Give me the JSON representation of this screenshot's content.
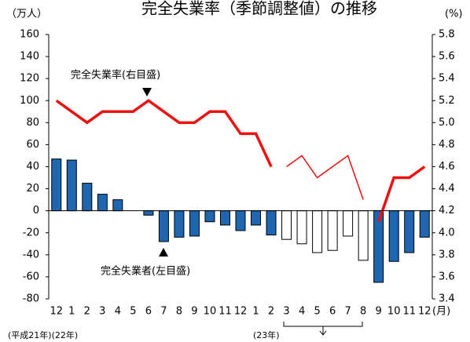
{
  "chart_data": {
    "type": "bar-line",
    "title": "完全失業率（季節調整値）の推移",
    "y_unit": "（万人）",
    "y2_unit": "(%)",
    "x_unit": "(月)",
    "year_labels": [
      "(平成21年)(22年)",
      "(23年)"
    ],
    "annotations": [
      "完全失業率(右目盛)",
      "完全失業者(左目盛)"
    ],
    "categories": [
      "12",
      "1",
      "2",
      "3",
      "4",
      "5",
      "6",
      "7",
      "8",
      "9",
      "10",
      "11",
      "12",
      "1",
      "2",
      "3",
      "4",
      "5",
      "6",
      "7",
      "8",
      "9",
      "10",
      "11",
      "12"
    ],
    "ylim": [
      -80,
      160
    ],
    "yticks": [
      -80,
      -60,
      -40,
      -20,
      0,
      20,
      40,
      60,
      80,
      100,
      120,
      140,
      160
    ],
    "y2lim": [
      3.4,
      5.8
    ],
    "y2ticks": [
      3.4,
      3.6,
      3.8,
      {
        "value": 4,
        "label": "4.0"
      },
      4.2,
      4.4,
      4.6,
      4.8,
      {
        "value": 5,
        "label": "5.0"
      },
      5.2,
      5.4,
      5.6,
      5.8
    ],
    "series": [
      {
        "type": "bar",
        "values": [
          47,
          46,
          25,
          15,
          10,
          0,
          -4,
          -28,
          -24,
          -23,
          -10,
          -13,
          -18,
          -13,
          -22,
          -26,
          -30,
          -38,
          -36,
          -23,
          -45,
          -65,
          -46,
          -38,
          -24
        ],
        "colors": [
          "#1f66b0",
          "#1f66b0",
          "#1f66b0",
          "#1f66b0",
          "#1f66b0",
          "#1f66b0",
          "#1f66b0",
          "#1f66b0",
          "#1f66b0",
          "#1f66b0",
          "#1f66b0",
          "#1f66b0",
          "#1f66b0",
          "#1f66b0",
          "#1f66b0",
          "#ffffff",
          "#ffffff",
          "#ffffff",
          "#ffffff",
          "#ffffff",
          "#ffffff",
          "#1f66b0",
          "#1f66b0",
          "#1f66b0",
          "#1f66b0"
        ]
      },
      {
        "type": "line",
        "axis": "y2",
        "color": "#ee1111",
        "width": 3.5,
        "values": [
          5.2,
          5.1,
          5.0,
          5.1,
          5.1,
          5.1,
          5.2,
          5.1,
          5.0,
          5.0,
          5.1,
          5.1,
          4.9,
          4.9,
          4.6,
          null,
          null,
          null,
          null,
          null,
          null,
          4.1,
          4.5,
          4.5,
          4.6
        ]
      },
      {
        "type": "line",
        "axis": "y2",
        "color": "#ee1111",
        "width": 1.5,
        "values": [
          null,
          null,
          null,
          null,
          null,
          null,
          null,
          null,
          null,
          null,
          null,
          null,
          null,
          null,
          null,
          4.6,
          4.7,
          4.5,
          4.6,
          4.7,
          4.3,
          null,
          null,
          null,
          null
        ]
      }
    ]
  }
}
